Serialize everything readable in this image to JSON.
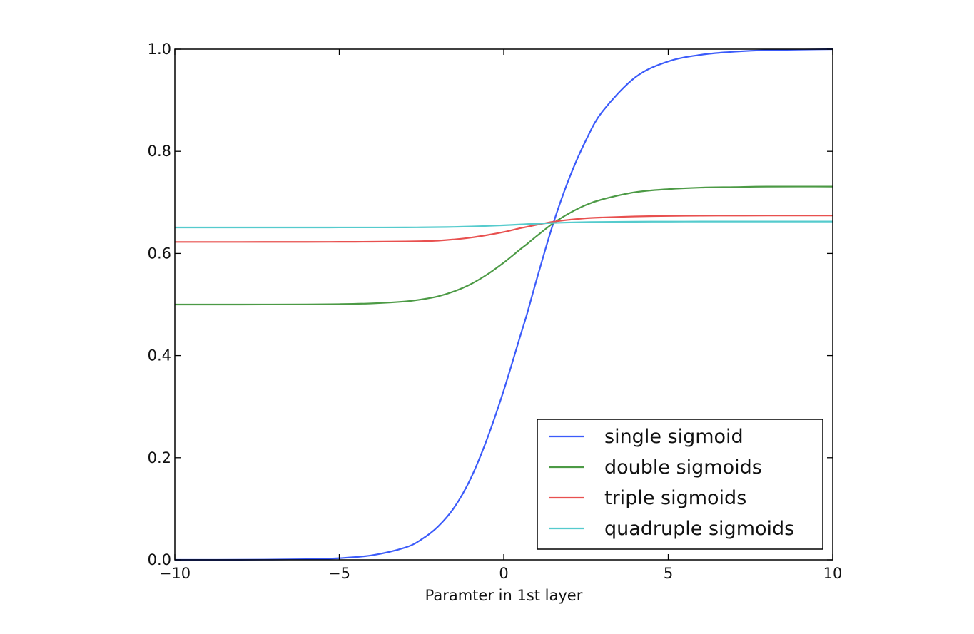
{
  "chart_data": {
    "type": "line",
    "title": "",
    "xlabel": "Paramter in 1st layer",
    "ylabel": "",
    "xlim": [
      -10,
      10
    ],
    "ylim": [
      0,
      1
    ],
    "x_ticks": [
      -10,
      -5,
      0,
      5,
      10
    ],
    "x_tick_labels": [
      "−10",
      "−5",
      "0",
      "5",
      "10"
    ],
    "y_ticks": [
      0.0,
      0.2,
      0.4,
      0.6,
      0.8,
      1.0
    ],
    "y_tick_labels": [
      "0.0",
      "0.2",
      "0.4",
      "0.6",
      "0.8",
      "1.0"
    ],
    "grid": false,
    "legend_position": "lower-right",
    "x": [
      -10,
      -8,
      -6,
      -5,
      -4,
      -3,
      -2.5,
      -2,
      -1.5,
      -1,
      -0.5,
      0,
      0.5,
      0.7,
      1,
      1.5,
      2,
      2.5,
      3,
      4,
      5,
      6,
      7,
      8,
      10
    ],
    "series": [
      {
        "name": "single sigmoid",
        "color": "#3b5bfa",
        "values": [
          2e-05,
          0.00017,
          0.0012,
          0.0033,
          0.009,
          0.024,
          0.04,
          0.065,
          0.103,
          0.16,
          0.238,
          0.332,
          0.438,
          0.48,
          0.549,
          0.658,
          0.749,
          0.822,
          0.878,
          0.945,
          0.976,
          0.989,
          0.995,
          0.998,
          1.0
        ]
      },
      {
        "name": "double sigmoids",
        "color": "#4c9a45",
        "values": [
          0.5,
          0.5,
          0.5003,
          0.5008,
          0.5023,
          0.506,
          0.51,
          0.516,
          0.526,
          0.54,
          0.559,
          0.582,
          0.608,
          0.618,
          0.634,
          0.659,
          0.679,
          0.695,
          0.706,
          0.72,
          0.726,
          0.729,
          0.73,
          0.731,
          0.731
        ]
      },
      {
        "name": "triple sigmoids",
        "color": "#e8504f",
        "values": [
          0.6225,
          0.6225,
          0.6226,
          0.6227,
          0.6229,
          0.6235,
          0.624,
          0.625,
          0.6275,
          0.631,
          0.636,
          0.642,
          0.6495,
          0.652,
          0.656,
          0.662,
          0.666,
          0.669,
          0.6705,
          0.6725,
          0.6735,
          0.674,
          0.6742,
          0.6743,
          0.6743
        ]
      },
      {
        "name": "quadruple sigmoids",
        "color": "#55cbcd",
        "values": [
          0.6508,
          0.6508,
          0.6508,
          0.6509,
          0.6509,
          0.651,
          0.6512,
          0.6515,
          0.652,
          0.6528,
          0.6539,
          0.6552,
          0.6568,
          0.6575,
          0.6584,
          0.6597,
          0.6607,
          0.6613,
          0.6617,
          0.6622,
          0.6624,
          0.6625,
          0.6625,
          0.6625,
          0.6625
        ]
      }
    ]
  }
}
